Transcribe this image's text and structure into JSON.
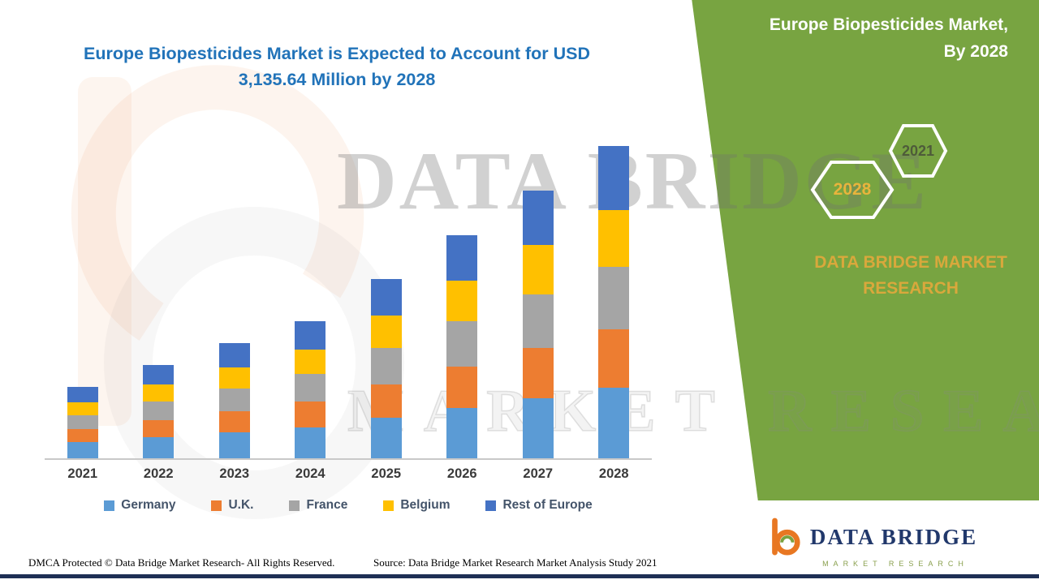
{
  "title": {
    "line1": "Europe Biopesticides Market is Expected to Account for USD",
    "line2": "3,135.64 Million by 2028"
  },
  "panel": {
    "heading_line1": "Europe Biopesticides Market,",
    "heading_line2": "By 2028",
    "hex_left_label": "2028",
    "hex_right_label": "2021",
    "brand_line1": "DATA BRIDGE MARKET",
    "brand_line2": "RESEARCH",
    "colors": {
      "panel_green": "#78A441",
      "gold": "#D9A83C",
      "hex_2021_text": "#4E5B3A",
      "white": "#FFFFFF"
    }
  },
  "watermark": {
    "line1": "DATA BRIDGE",
    "line2": "MARKET RESEARCH"
  },
  "chart_data": {
    "type": "bar",
    "stacked": true,
    "title": "Europe Biopesticides Market is Expected to Account for USD 3,135.64 Million by 2028",
    "xlabel": "",
    "ylabel": "",
    "ylim": [
      0,
      3300
    ],
    "grid": false,
    "legend_position": "bottom",
    "categories": [
      "2021",
      "2022",
      "2023",
      "2024",
      "2025",
      "2026",
      "2027",
      "2028"
    ],
    "series": [
      {
        "name": "Germany",
        "color": "#5B9BD5",
        "values": [
          160,
          210,
          260,
          310,
          405,
          505,
          605,
          705
        ]
      },
      {
        "name": "U.K.",
        "color": "#ED7D31",
        "values": [
          135,
          175,
          215,
          260,
          340,
          420,
          505,
          590
        ]
      },
      {
        "name": "France",
        "color": "#A5A5A5",
        "values": [
          140,
          185,
          230,
          275,
          360,
          450,
          540,
          630
        ]
      },
      {
        "name": "Belgium",
        "color": "#FFC000",
        "values": [
          130,
          170,
          210,
          250,
          330,
          410,
          490,
          570
        ]
      },
      {
        "name": "Rest of Europe",
        "color": "#4472C4",
        "values": [
          149,
          195,
          242,
          284,
          370,
          455,
          552,
          640.64
        ]
      }
    ],
    "totals": [
      714,
      935,
      1157,
      1379,
      1805,
      2240,
      2692,
      3135.64
    ]
  },
  "logo": {
    "name": "DATA BRIDGE",
    "subtitle": "MARKET RESEARCH"
  },
  "footer": {
    "dmca": "DMCA Protected © Data Bridge Market Research- All Rights Reserved.",
    "source": "Source: Data Bridge Market Research Market Analysis Study 2021"
  }
}
